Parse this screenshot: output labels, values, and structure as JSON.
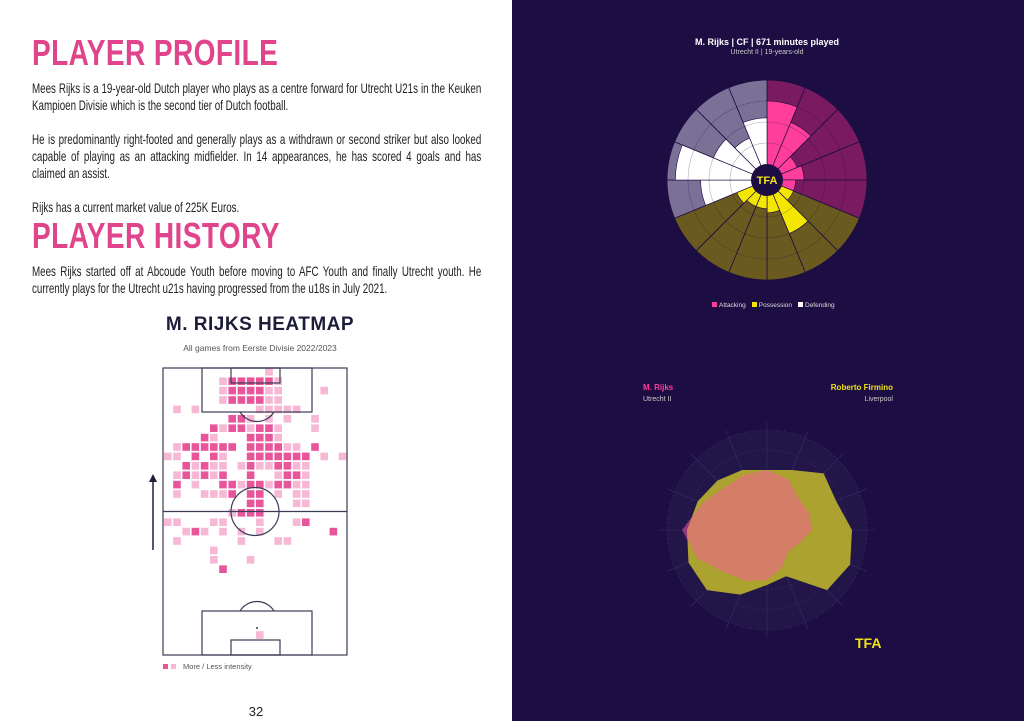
{
  "profile": {
    "heading": "PLAYER PROFILE",
    "paragraphs": [
      "Mees Rijks is a 19-year-old Dutch player who plays as a centre forward for Utrecht U21s in the Keuken Kampioen Divisie which is the second tier of Dutch football.",
      "He is predominantly right-footed and generally plays as a withdrawn or second striker but also looked capable of playing as an attacking midfielder. In 14 appearances, he has scored 4 goals and has claimed an assist.",
      "Rijks has a current market value of 225K Euros."
    ]
  },
  "history": {
    "heading": "PLAYER HISTORY",
    "paragraphs": [
      "Mees Rijks started off at Abcoude Youth before moving to AFC Youth and finally Utrecht youth. He currently plays for the Utrecht u21s having progressed from the u18s in July 2021."
    ]
  },
  "heatmap": {
    "title": "M. RIJKS HEATMAP",
    "subtitle": "All games from Eerste Divisie 2022/2023",
    "legend": "More / Less intensity",
    "colors": {
      "high": "#e8559a",
      "low": "#f6b8d4"
    },
    "grid": [
      "00000000000100000000",
      "00000012222210000000",
      "00000012222110000100",
      "00000012222110000000",
      "01010000001111100000",
      "00000002210101001000",
      "00000212212210001000",
      "00002100022210000000",
      "01222222022221102000",
      "11020210022222220101",
      "00212110121122110000",
      "01212120020012210000",
      "02010022122122110000",
      "01001112022010110000",
      "00000000022000110000",
      "00000001222000000000",
      "11000110001000120000",
      "00121010101000000020",
      "01000000100011000000",
      "00000100000000000000",
      "00000100010000000000",
      "00000020000000000000",
      "00000000000000000000",
      "00000000000000000000",
      "00000000000000000000",
      "00000000000000000000",
      "00000000000000000000",
      "00000000000000000000",
      "00000000001000000000",
      "00000000000000000000"
    ]
  },
  "page_number": "32",
  "pizza": {
    "title": "M. Rijks | CF | 671 minutes played",
    "subtitle": "Utrecht II | 19-years-old",
    "logo": "TFA",
    "legend": [
      {
        "label": "Attacking",
        "color": "#ff3d9a"
      },
      {
        "label": "Possession",
        "color": "#f3e600"
      },
      {
        "label": "Defending",
        "color": "#ffffff"
      }
    ],
    "groups": [
      {
        "name": "Attacking",
        "bg": "#7a1a60",
        "bar": "#ff3d9a",
        "percentiles": [
          0.75,
          0.55,
          0.2,
          0.25,
          0.15
        ]
      },
      {
        "name": "Possession",
        "bg": "#6b5a20",
        "bar": "#f3e600",
        "percentiles": [
          0.15,
          0.5,
          0.2,
          0.15,
          0.15,
          0.2
        ]
      },
      {
        "name": "Defending",
        "bg": "#7b7196",
        "bar": "#ffffff",
        "percentiles": [
          0.6,
          0.9,
          0.5,
          0.35,
          0.55
        ]
      }
    ]
  },
  "comparison": {
    "player1": {
      "name": "M. Rijks",
      "team": "Utrecht II",
      "color": "#ff3d9a",
      "values": [
        0.6,
        0.55,
        0.45,
        0.45,
        0.45,
        0.35,
        0.3,
        0.4,
        0.5,
        0.55,
        0.6,
        0.75,
        0.85,
        0.7,
        0.6,
        0.6
      ]
    },
    "player2": {
      "name": "Roberto Firmino",
      "team": "Liverpool",
      "color": "#f3e600",
      "values": [
        0.6,
        0.65,
        0.8,
        0.75,
        0.85,
        0.9,
        0.85,
        0.5,
        0.55,
        0.7,
        0.85,
        0.85,
        0.8,
        0.75,
        0.7,
        0.65
      ]
    },
    "logo": "TFA"
  }
}
